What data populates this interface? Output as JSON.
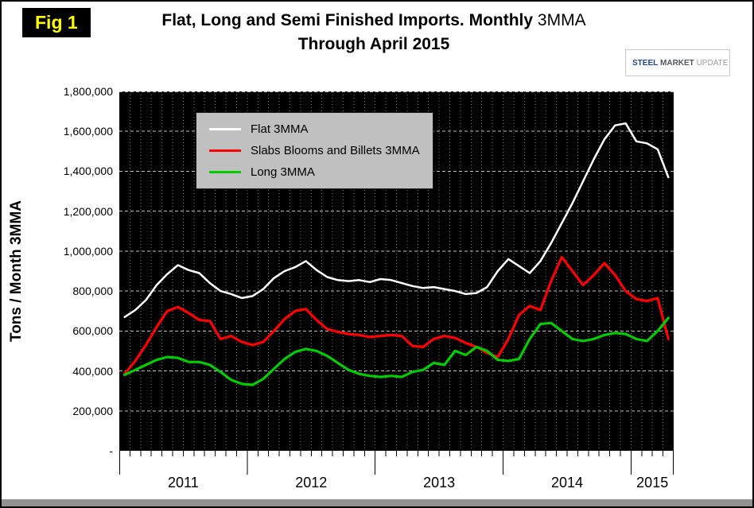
{
  "figure": {
    "badge": "Fig 1"
  },
  "title": {
    "bold": "Flat, Long and Semi Finished Imports. Monthly",
    "regular": "3MMA",
    "line2": "Through April 2015"
  },
  "logo": {
    "word1": "STEEL",
    "word2": "MARKET",
    "word3": "UPDATE"
  },
  "y_axis": {
    "label": "Tons / Month 3MMA",
    "ticks": [
      "1,800,000",
      "1,600,000",
      "1,400,000",
      "1,200,000",
      "1,000,000",
      "800,000",
      "600,000",
      "400,000",
      "200,000",
      "-"
    ]
  },
  "x_axis": {
    "years": [
      "2011",
      "2012",
      "2013",
      "2014",
      "2015"
    ],
    "months_per_year": [
      12,
      12,
      12,
      12,
      4
    ]
  },
  "colors": {
    "badge_bg": "#000000",
    "badge_text": "#FFFF00",
    "legend_bg": "#C0C0C0"
  },
  "chart_data": {
    "type": "line",
    "title": "Flat, Long and Semi Finished Imports. Monthly 3MMA Through April 2015",
    "ylabel": "Tons / Month 3MMA",
    "ylim": [
      0,
      1800000
    ],
    "ytick_interval": 200000,
    "x_range": "Jan 2011 through Apr 2015, monthly",
    "plot_background": "#000000",
    "grid_color": "#FFFFFF",
    "grid": "on",
    "legend_position": "top-left",
    "series": [
      {
        "name": "Flat 3MMA",
        "color": "#FFFFFF",
        "values": [
          670000,
          705000,
          755000,
          830000,
          885000,
          930000,
          905000,
          890000,
          840000,
          800000,
          785000,
          765000,
          775000,
          810000,
          865000,
          900000,
          920000,
          950000,
          905000,
          870000,
          855000,
          850000,
          855000,
          845000,
          860000,
          855000,
          840000,
          825000,
          815000,
          820000,
          810000,
          800000,
          785000,
          790000,
          820000,
          900000,
          960000,
          925000,
          890000,
          950000,
          1040000,
          1140000,
          1240000,
          1350000,
          1460000,
          1560000,
          1630000,
          1640000,
          1550000,
          1540000,
          1510000,
          1370000
        ]
      },
      {
        "name": "Slabs Blooms and Billets 3MMA",
        "color": "#FF0000",
        "values": [
          385000,
          450000,
          530000,
          620000,
          700000,
          720000,
          690000,
          655000,
          650000,
          560000,
          575000,
          545000,
          530000,
          545000,
          600000,
          660000,
          700000,
          710000,
          655000,
          610000,
          595000,
          585000,
          580000,
          570000,
          575000,
          580000,
          575000,
          525000,
          520000,
          560000,
          575000,
          565000,
          540000,
          520000,
          490000,
          470000,
          560000,
          680000,
          725000,
          705000,
          850000,
          970000,
          900000,
          830000,
          880000,
          940000,
          880000,
          800000,
          760000,
          750000,
          765000,
          560000
        ]
      },
      {
        "name": "Long 3MMA",
        "color": "#00CC00",
        "values": [
          380000,
          405000,
          430000,
          455000,
          470000,
          465000,
          445000,
          445000,
          430000,
          395000,
          355000,
          335000,
          330000,
          360000,
          410000,
          460000,
          495000,
          510000,
          500000,
          475000,
          440000,
          405000,
          385000,
          375000,
          370000,
          375000,
          370000,
          395000,
          405000,
          440000,
          430000,
          500000,
          480000,
          520000,
          500000,
          455000,
          450000,
          460000,
          560000,
          635000,
          640000,
          600000,
          560000,
          550000,
          560000,
          580000,
          590000,
          585000,
          560000,
          550000,
          600000,
          665000
        ]
      }
    ]
  }
}
